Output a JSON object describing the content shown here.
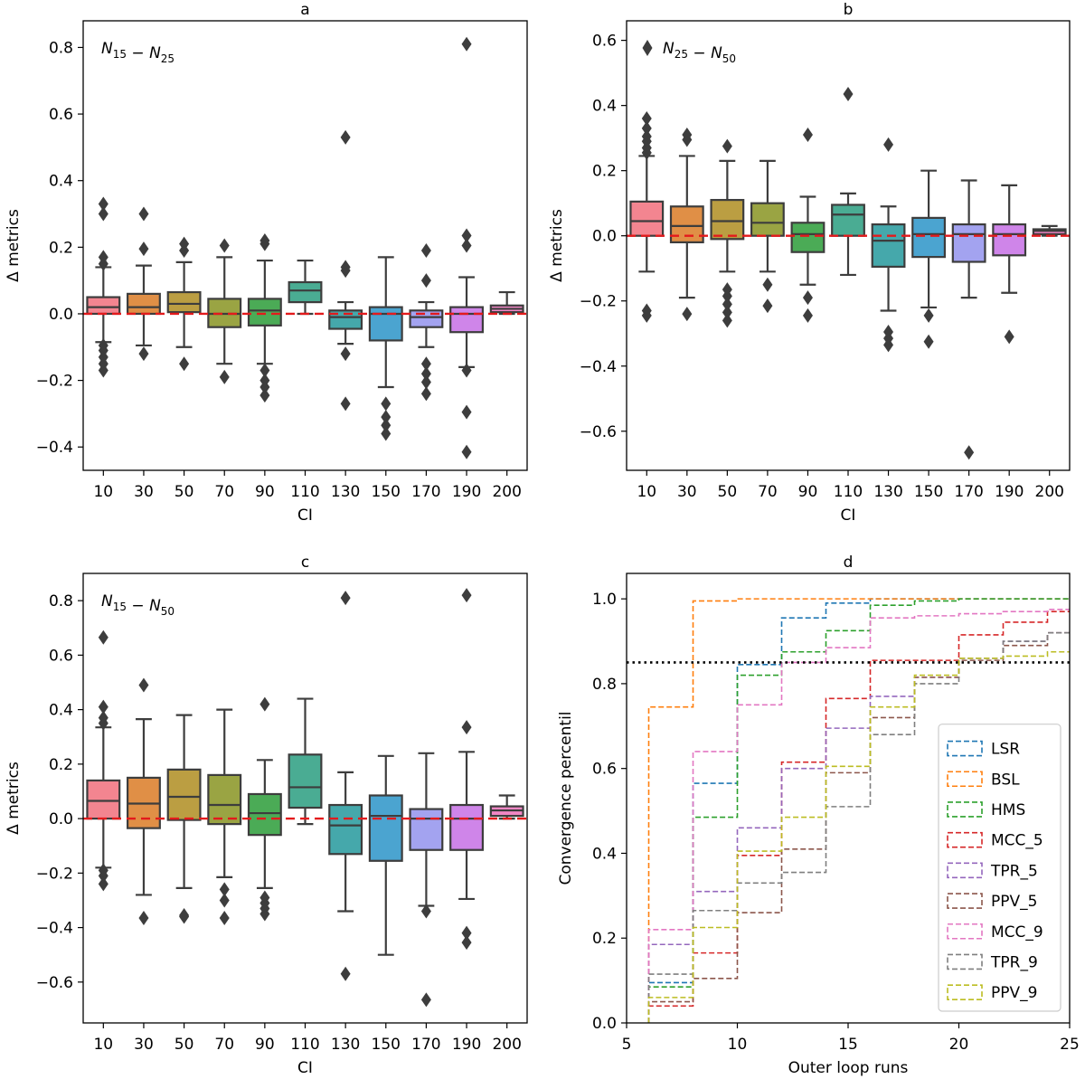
{
  "chart_data": [
    {
      "panel": "a",
      "type": "boxplot",
      "title": "a",
      "annotation": "N15 − N25",
      "xlabel": "CI",
      "ylabel": "Δ metrics",
      "categories": [
        "10",
        "30",
        "50",
        "70",
        "90",
        "110",
        "130",
        "150",
        "170",
        "190",
        "200"
      ],
      "ylim": [
        -0.47,
        0.88
      ],
      "yticks": [
        -0.4,
        -0.2,
        0.0,
        0.2,
        0.4,
        0.6,
        0.8
      ],
      "yticklabels": [
        "−0.4",
        "−0.2",
        "0.0",
        "0.2",
        "0.4",
        "0.6",
        "0.8"
      ],
      "reference_line": 0.0,
      "boxes": [
        {
          "q1": 0.0,
          "median": 0.02,
          "q3": 0.05,
          "whislo": -0.085,
          "whishi": 0.14,
          "fliers": [
            -0.17,
            -0.15,
            -0.13,
            -0.11,
            -0.095,
            0.15,
            0.17,
            0.3,
            0.33
          ]
        },
        {
          "q1": 0.0,
          "median": 0.02,
          "q3": 0.06,
          "whislo": -0.095,
          "whishi": 0.145,
          "fliers": [
            -0.12,
            0.195,
            0.3
          ]
        },
        {
          "q1": 0.005,
          "median": 0.03,
          "q3": 0.065,
          "whislo": -0.1,
          "whishi": 0.155,
          "fliers": [
            -0.15,
            0.19,
            0.21
          ]
        },
        {
          "q1": -0.04,
          "median": 0.0,
          "q3": 0.045,
          "whislo": -0.15,
          "whishi": 0.17,
          "fliers": [
            -0.19,
            0.205
          ]
        },
        {
          "q1": -0.035,
          "median": 0.01,
          "q3": 0.045,
          "whislo": -0.15,
          "whishi": 0.16,
          "fliers": [
            -0.245,
            -0.22,
            -0.2,
            -0.17,
            0.21,
            0.22
          ]
        },
        {
          "q1": 0.035,
          "median": 0.07,
          "q3": 0.095,
          "whislo": 0.0,
          "whishi": 0.16,
          "fliers": []
        },
        {
          "q1": -0.045,
          "median": -0.01,
          "q3": 0.01,
          "whislo": -0.09,
          "whishi": 0.035,
          "fliers": [
            -0.27,
            -0.12,
            0.13,
            0.14,
            0.53
          ]
        },
        {
          "q1": -0.08,
          "median": 0.0,
          "q3": 0.02,
          "whislo": -0.22,
          "whishi": 0.17,
          "fliers": [
            -0.36,
            -0.335,
            -0.31,
            -0.27
          ]
        },
        {
          "q1": -0.04,
          "median": -0.01,
          "q3": 0.01,
          "whislo": -0.1,
          "whishi": 0.035,
          "fliers": [
            -0.24,
            -0.205,
            -0.18,
            -0.15,
            0.1,
            0.19
          ]
        },
        {
          "q1": -0.055,
          "median": 0.0,
          "q3": 0.02,
          "whislo": -0.16,
          "whishi": 0.11,
          "fliers": [
            -0.415,
            -0.295,
            -0.17,
            0.205,
            0.235,
            0.81
          ]
        },
        {
          "q1": 0.005,
          "median": 0.015,
          "q3": 0.025,
          "whislo": 0.0,
          "whishi": 0.065,
          "fliers": []
        }
      ]
    },
    {
      "panel": "b",
      "type": "boxplot",
      "title": "b",
      "annotation": "N25 − N50",
      "xlabel": "CI",
      "ylabel": "Δ metrics",
      "categories": [
        "10",
        "30",
        "50",
        "70",
        "90",
        "110",
        "130",
        "150",
        "170",
        "190",
        "200"
      ],
      "ylim": [
        -0.72,
        0.66
      ],
      "yticks": [
        -0.6,
        -0.4,
        -0.2,
        0.0,
        0.2,
        0.4,
        0.6
      ],
      "yticklabels": [
        "−0.6",
        "−0.4",
        "−0.2",
        "0.0",
        "0.2",
        "0.4",
        "0.6"
      ],
      "reference_line": 0.0,
      "boxes": [
        {
          "q1": 0.0,
          "median": 0.045,
          "q3": 0.105,
          "whislo": -0.11,
          "whishi": 0.245,
          "fliers": [
            -0.245,
            -0.23,
            0.255,
            0.27,
            0.29,
            0.305,
            0.33,
            0.36
          ]
        },
        {
          "q1": -0.02,
          "median": 0.03,
          "q3": 0.09,
          "whislo": -0.19,
          "whishi": 0.245,
          "fliers": [
            -0.24,
            0.295,
            0.31
          ]
        },
        {
          "q1": -0.01,
          "median": 0.045,
          "q3": 0.11,
          "whislo": -0.11,
          "whishi": 0.23,
          "fliers": [
            -0.26,
            -0.235,
            -0.21,
            -0.185,
            -0.165,
            0.275
          ]
        },
        {
          "q1": 0.0,
          "median": 0.04,
          "q3": 0.1,
          "whislo": -0.11,
          "whishi": 0.23,
          "fliers": [
            -0.215,
            -0.15
          ]
        },
        {
          "q1": -0.05,
          "median": 0.005,
          "q3": 0.04,
          "whislo": -0.15,
          "whishi": 0.12,
          "fliers": [
            -0.245,
            -0.19,
            0.31
          ]
        },
        {
          "q1": 0.0,
          "median": 0.065,
          "q3": 0.095,
          "whislo": -0.12,
          "whishi": 0.13,
          "fliers": [
            0.435
          ]
        },
        {
          "q1": -0.095,
          "median": -0.015,
          "q3": 0.035,
          "whislo": -0.23,
          "whishi": 0.09,
          "fliers": [
            -0.335,
            -0.315,
            -0.295,
            0.28
          ]
        },
        {
          "q1": -0.065,
          "median": 0.005,
          "q3": 0.055,
          "whislo": -0.22,
          "whishi": 0.2,
          "fliers": [
            -0.325,
            -0.245
          ]
        },
        {
          "q1": -0.08,
          "median": 0.005,
          "q3": 0.035,
          "whislo": -0.19,
          "whishi": 0.17,
          "fliers": [
            -0.665
          ]
        },
        {
          "q1": -0.06,
          "median": 0.005,
          "q3": 0.035,
          "whislo": -0.175,
          "whishi": 0.155,
          "fliers": [
            -0.31
          ]
        },
        {
          "q1": 0.005,
          "median": 0.015,
          "q3": 0.02,
          "whislo": 0.0,
          "whishi": 0.03,
          "fliers": []
        }
      ]
    },
    {
      "panel": "c",
      "type": "boxplot",
      "title": "c",
      "annotation": "N15 − N50",
      "xlabel": "CI",
      "ylabel": "Δ metrics",
      "categories": [
        "10",
        "30",
        "50",
        "70",
        "90",
        "110",
        "130",
        "150",
        "170",
        "190",
        "200"
      ],
      "ylim": [
        -0.75,
        0.9
      ],
      "yticks": [
        -0.6,
        -0.4,
        -0.2,
        0.0,
        0.2,
        0.4,
        0.6,
        0.8
      ],
      "yticklabels": [
        "−0.6",
        "−0.4",
        "−0.2",
        "0.0",
        "0.2",
        "0.4",
        "0.6",
        "0.8"
      ],
      "reference_line": 0.0,
      "boxes": [
        {
          "q1": 0.0,
          "median": 0.065,
          "q3": 0.14,
          "whislo": -0.18,
          "whishi": 0.335,
          "fliers": [
            -0.24,
            -0.21,
            -0.19,
            0.35,
            0.37,
            0.41,
            0.665
          ]
        },
        {
          "q1": -0.035,
          "median": 0.055,
          "q3": 0.15,
          "whislo": -0.28,
          "whishi": 0.365,
          "fliers": [
            -0.365,
            0.49
          ]
        },
        {
          "q1": -0.005,
          "median": 0.08,
          "q3": 0.18,
          "whislo": -0.255,
          "whishi": 0.38,
          "fliers": [
            -0.36,
            -0.355
          ]
        },
        {
          "q1": -0.02,
          "median": 0.05,
          "q3": 0.16,
          "whislo": -0.215,
          "whishi": 0.4,
          "fliers": [
            -0.365,
            -0.3,
            -0.26
          ]
        },
        {
          "q1": -0.06,
          "median": 0.02,
          "q3": 0.09,
          "whislo": -0.255,
          "whishi": 0.215,
          "fliers": [
            -0.35,
            -0.33,
            -0.31,
            -0.29,
            0.42
          ]
        },
        {
          "q1": 0.04,
          "median": 0.115,
          "q3": 0.235,
          "whislo": -0.02,
          "whishi": 0.44,
          "fliers": []
        },
        {
          "q1": -0.13,
          "median": -0.025,
          "q3": 0.05,
          "whislo": -0.34,
          "whishi": 0.17,
          "fliers": [
            -0.57,
            0.81
          ]
        },
        {
          "q1": -0.155,
          "median": 0.01,
          "q3": 0.085,
          "whislo": -0.5,
          "whishi": 0.23,
          "fliers": []
        },
        {
          "q1": -0.115,
          "median": 0.0,
          "q3": 0.035,
          "whislo": -0.32,
          "whishi": 0.24,
          "fliers": [
            -0.665,
            -0.34
          ]
        },
        {
          "q1": -0.115,
          "median": 0.0,
          "q3": 0.05,
          "whislo": -0.295,
          "whishi": 0.245,
          "fliers": [
            -0.455,
            -0.42,
            0.335,
            0.82
          ]
        },
        {
          "q1": 0.01,
          "median": 0.03,
          "q3": 0.045,
          "whislo": 0.0,
          "whishi": 0.085,
          "fliers": []
        }
      ]
    },
    {
      "panel": "d",
      "type": "step",
      "title": "d",
      "xlabel": "Outer loop runs",
      "ylabel": "Convergence percentil",
      "xlim": [
        5,
        25
      ],
      "ylim": [
        0.0,
        1.06
      ],
      "xticks": [
        5,
        10,
        15,
        20,
        25
      ],
      "yticks": [
        0.0,
        0.2,
        0.4,
        0.6,
        0.8,
        1.0
      ],
      "yticklabels": [
        "0.0",
        "0.2",
        "0.4",
        "0.6",
        "0.8",
        "1.0"
      ],
      "threshold": 0.85,
      "x": [
        6,
        8,
        10,
        12,
        14,
        16,
        18,
        20,
        22,
        24,
        25
      ],
      "series": [
        {
          "name": "LSR",
          "color": "#1f77b4",
          "values": [
            0.095,
            0.565,
            0.845,
            0.955,
            0.99,
            1.0,
            1.0,
            1.0,
            1.0,
            1.0,
            1.0
          ]
        },
        {
          "name": "BSL",
          "color": "#ff7f0e",
          "values": [
            0.745,
            0.995,
            1.0,
            1.0,
            1.0,
            1.0,
            1.0,
            1.0,
            1.0,
            1.0,
            1.0
          ]
        },
        {
          "name": "HMS",
          "color": "#2ca02c",
          "values": [
            0.085,
            0.485,
            0.82,
            0.875,
            0.925,
            0.985,
            0.995,
            1.0,
            1.0,
            1.0,
            1.0
          ]
        },
        {
          "name": "MCC_5",
          "color": "#d62728",
          "values": [
            0.04,
            0.165,
            0.395,
            0.615,
            0.765,
            0.855,
            0.855,
            0.915,
            0.945,
            0.97,
            0.97
          ]
        },
        {
          "name": "TPR_5",
          "color": "#9467bd",
          "values": [
            0.185,
            0.31,
            0.46,
            0.6,
            0.695,
            0.77,
            0.815,
            0.86,
            0.9,
            0.92,
            0.92
          ]
        },
        {
          "name": "PPV_5",
          "color": "#8c564b",
          "values": [
            0.05,
            0.105,
            0.26,
            0.41,
            0.59,
            0.72,
            0.815,
            0.855,
            0.89,
            0.92,
            0.92
          ]
        },
        {
          "name": "MCC_9",
          "color": "#e377c2",
          "values": [
            0.22,
            0.64,
            0.75,
            0.85,
            0.885,
            0.955,
            0.96,
            0.965,
            0.97,
            0.975,
            0.975
          ]
        },
        {
          "name": "TPR_9",
          "color": "#7f7f7f",
          "values": [
            0.115,
            0.265,
            0.33,
            0.355,
            0.51,
            0.68,
            0.8,
            0.86,
            0.9,
            0.92,
            0.92
          ]
        },
        {
          "name": "PPV_9",
          "color": "#bcbd22",
          "values": [
            0.06,
            0.225,
            0.405,
            0.485,
            0.605,
            0.745,
            0.82,
            0.86,
            0.865,
            0.875,
            0.875
          ]
        }
      ],
      "legend_position": "lower-right"
    }
  ],
  "box_palette": [
    "#f38590",
    "#e08f46",
    "#bb9e42",
    "#9aa443",
    "#4bab56",
    "#4aac93",
    "#45a8ab",
    "#4ba4d0",
    "#a3a3f0",
    "#cf85e9",
    "#f186c5"
  ]
}
